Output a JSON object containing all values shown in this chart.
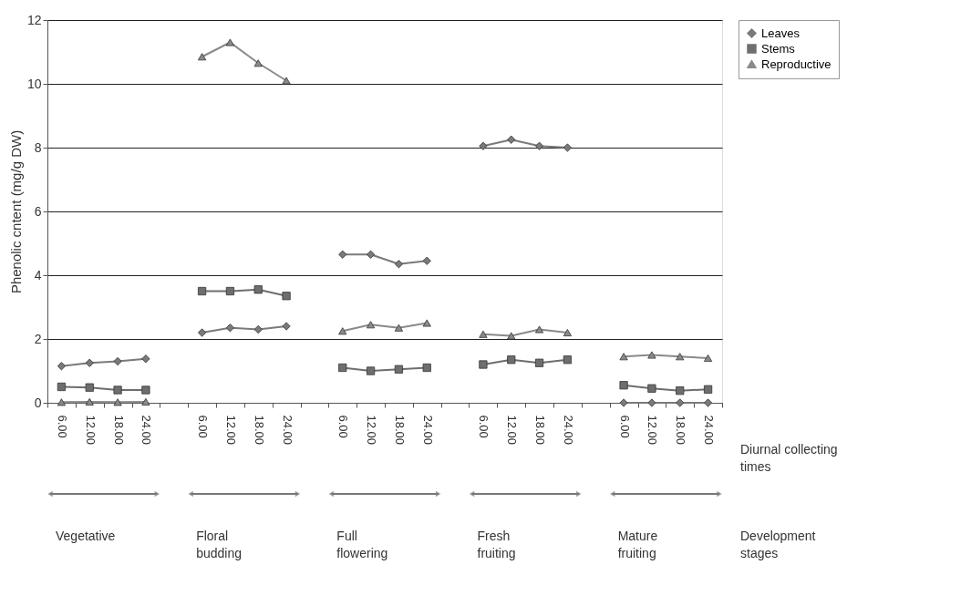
{
  "chart_data": {
    "type": "line",
    "ylabel": "Phenolic cntent (mg/g DW)",
    "categories": [
      "6.00",
      "12.00",
      "18.00",
      "24.00",
      null,
      "6.00",
      "12.00",
      "18.00",
      "24.00",
      null,
      "6.00",
      "12.00",
      "18.00",
      "24.00",
      null,
      "6.00",
      "12.00",
      "18.00",
      "24.00",
      null,
      "6.00",
      "12.00",
      "18.00",
      "24.00"
    ],
    "series": [
      {
        "name": "Leaves",
        "color": "#7a7a7a",
        "marker": "diamond",
        "values": [
          1.15,
          1.25,
          1.3,
          1.38,
          null,
          2.2,
          2.35,
          2.3,
          2.4,
          null,
          4.65,
          4.65,
          4.35,
          4.45,
          null,
          8.05,
          8.25,
          8.05,
          8.0,
          null,
          0.0,
          0.0,
          0.0,
          0.0
        ]
      },
      {
        "name": "Stems",
        "color": "#6e6e6e",
        "marker": "square",
        "values": [
          0.5,
          0.48,
          0.4,
          0.4,
          null,
          3.5,
          3.5,
          3.55,
          3.35,
          null,
          1.1,
          1.0,
          1.05,
          1.1,
          null,
          1.2,
          1.35,
          1.25,
          1.35,
          null,
          0.55,
          0.45,
          0.38,
          0.42
        ]
      },
      {
        "name": "Reproductive",
        "color": "#8a8a8a",
        "marker": "triangle",
        "values": [
          0.02,
          0.03,
          0.02,
          0.03,
          null,
          10.85,
          11.3,
          10.65,
          10.1,
          null,
          2.25,
          2.45,
          2.35,
          2.5,
          null,
          2.15,
          2.1,
          2.3,
          2.2,
          null,
          1.45,
          1.5,
          1.45,
          1.4
        ]
      }
    ],
    "ylim": [
      0,
      12
    ],
    "yticks": [
      0,
      2,
      4,
      6,
      8,
      10,
      12
    ],
    "grid": "y",
    "legend": "right",
    "annotations": [
      "Vegetative",
      "Floral\nbudding",
      "Full\nflowering",
      "Fresh\nfruiting",
      "Mature\nfruiting",
      "Diurnal collecting\ntimes",
      "Development\nstages"
    ]
  }
}
